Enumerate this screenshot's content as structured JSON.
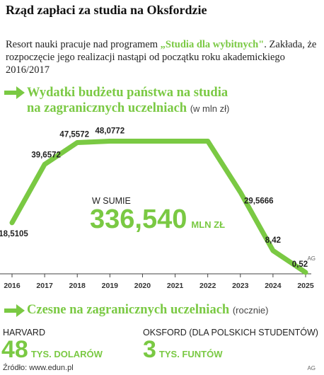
{
  "title": "Rząd zapłaci za studia na Oksfordzie",
  "lead": {
    "before": "Resort nauki pracuje nad programem ",
    "highlight": "„Studia dla wybitnych\"",
    "after": ". Zakłada, że rozpoczęcie jego realizacji nastąpi od początku roku akademickiego 2016/2017"
  },
  "section1": {
    "title_line1": "Wydatki budżetu państwa na studia",
    "title_line2": "na zagranicznych uczelniach",
    "unit": "(w mln zł)"
  },
  "chart_data": {
    "type": "line",
    "x": [
      "2016",
      "2017",
      "2018",
      "2019",
      "2020",
      "2021",
      "2022",
      "2023",
      "2024",
      "2025"
    ],
    "series": [
      {
        "values": [
          18.5105,
          39.6572,
          47.5572,
          48.0772,
          48.0772,
          48.0772,
          48.0772,
          29.5666,
          8.42,
          0.52
        ]
      }
    ],
    "data_labels": [
      "18,5105",
      "39,6572",
      "47,5572",
      "48,0772",
      "",
      "",
      "",
      "29,5666",
      "8,42",
      "0,52"
    ],
    "ylim": [
      0,
      50
    ],
    "grid": false,
    "total": {
      "label": "W SUMIE",
      "value": "336,540",
      "unit": "MLN ZŁ"
    },
    "line_color": "#7ac943"
  },
  "credit": "AG",
  "section2": {
    "title": "Czesne na zagranicznych uczelniach",
    "unit": "(rocznie)"
  },
  "fees": [
    {
      "label": "HARVARD",
      "value": "48",
      "unit": "TYS. DOLARÓW"
    },
    {
      "label": "OKSFORD (DLA POLSKICH STUDENTÓW)",
      "value": "3",
      "unit": "TYS. FUNTÓW"
    }
  ],
  "source": "Źródło: www.edun.pl",
  "colors": {
    "accent": "#7ac943",
    "text": "#222222"
  }
}
